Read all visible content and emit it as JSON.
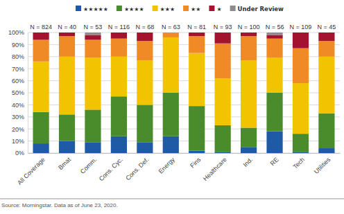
{
  "chart_data": {
    "type": "bar",
    "stacked": true,
    "grid": true,
    "legend": "top",
    "categories": [
      "All Coverage",
      "Bmat",
      "Comm.",
      "Cons. Cyc.",
      "Cons. Def.",
      "Energy",
      "Fins",
      "Healthcare",
      "Ind.",
      "RE",
      "Tech",
      "Utilities"
    ],
    "annotations": [
      "N = 824",
      "N = 40",
      "N = 53",
      "N = 116",
      "N = 68",
      "N = 63",
      "N = 81",
      "N = 93",
      "N = 100",
      "N = 56",
      "N = 109",
      "N = 45"
    ],
    "series": [
      {
        "name": "★★★★★",
        "color": "#1f5aa6",
        "values": [
          8,
          10,
          9,
          14,
          9,
          14,
          2,
          1,
          5,
          18,
          1,
          4
        ]
      },
      {
        "name": "★★★★",
        "color": "#4a8b2c",
        "values": [
          26,
          22,
          27,
          33,
          31,
          36,
          37,
          22,
          16,
          32,
          15,
          29
        ]
      },
      {
        "name": "★★★",
        "color": "#f2c300",
        "values": [
          42,
          48,
          43,
          33,
          37,
          46,
          44,
          39,
          56,
          29,
          42,
          47
        ]
      },
      {
        "name": "★★",
        "color": "#ef8a25",
        "values": [
          18,
          17,
          15,
          15,
          16,
          4,
          14,
          29,
          20,
          16,
          29,
          13
        ]
      },
      {
        "name": "★",
        "color": "#a3122f",
        "values": [
          6,
          3,
          4,
          5,
          7,
          0,
          3,
          9,
          3,
          3,
          13,
          7
        ]
      },
      {
        "name": "Under Review",
        "color": "#8c8c8c",
        "values": [
          0,
          0,
          2,
          0,
          0,
          0,
          0,
          0,
          0,
          2,
          0,
          0
        ]
      }
    ],
    "ylim": [
      0,
      100
    ],
    "yticks": [
      {
        "value": 0,
        "label": "0%"
      },
      {
        "value": 10,
        "label": "10%"
      },
      {
        "value": 20,
        "label": "20%"
      },
      {
        "value": 30,
        "label": "30%"
      },
      {
        "value": 40,
        "label": "40%"
      },
      {
        "value": 50,
        "label": "50%"
      },
      {
        "value": 60,
        "label": "60%"
      },
      {
        "value": 70,
        "label": "70%"
      },
      {
        "value": 80,
        "label": "80%"
      },
      {
        "value": 90,
        "label": "90%"
      },
      {
        "value": 100,
        "label": "100%"
      }
    ],
    "source": "Source: Morningstar. Data as of June 23, 2020."
  }
}
